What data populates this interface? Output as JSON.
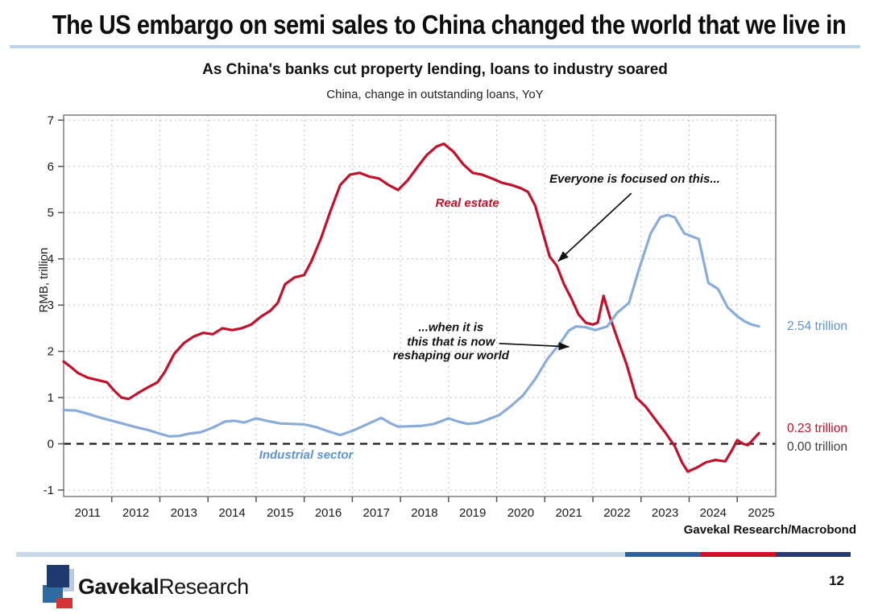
{
  "page": {
    "title": "The US embargo on semi sales to China changed the world that we live in",
    "source": "Gavekal Research/Macrobond",
    "page_number": "12",
    "logo": {
      "bold": "Gavekal",
      "regular": "Research"
    }
  },
  "colors": {
    "red_line": "#c3112b",
    "blue_line": "#8aacda",
    "blue_text": "#5f94ce",
    "rule": "#bfd4e6",
    "bar_light": "#c9d9ea",
    "bar_blue": "#2b5f9e",
    "bar_red": "#ce1126",
    "bar_navy": "#273b72",
    "logo_navy": "#1f3a6e",
    "logo_mid": "#2d6ca2",
    "logo_light": "#b9cbdf",
    "logo_red": "#d63434"
  },
  "chart_data": {
    "type": "line",
    "title": "As China's banks cut property lending, loans to industry soared",
    "subtitle": "China, change in outstanding loans, YoY",
    "ylabel": "RMB, trillion",
    "x_range": [
      2011.0,
      2025.8
    ],
    "y_range": [
      -1.14,
      7.11
    ],
    "x_ticks": [
      2011,
      2012,
      2013,
      2014,
      2015,
      2016,
      2017,
      2018,
      2019,
      2020,
      2021,
      2022,
      2023,
      2024,
      2025
    ],
    "x_grid": [
      2012,
      2013,
      2014,
      2015,
      2016,
      2017,
      2018,
      2019,
      2020,
      2021,
      2022,
      2023,
      2024,
      2025
    ],
    "y_ticks": [
      -1,
      0,
      1,
      2,
      3,
      4,
      5,
      6,
      7
    ],
    "zero_line": true,
    "grid": true,
    "legend_position": "in-plot labels",
    "series": [
      {
        "name": "Real estate",
        "color": "#c3112b",
        "points": [
          [
            2011.0,
            1.78
          ],
          [
            2011.15,
            1.66
          ],
          [
            2011.3,
            1.53
          ],
          [
            2011.5,
            1.43
          ],
          [
            2011.7,
            1.38
          ],
          [
            2011.9,
            1.33
          ],
          [
            2012.05,
            1.15
          ],
          [
            2012.2,
            1.0
          ],
          [
            2012.35,
            0.97
          ],
          [
            2012.55,
            1.1
          ],
          [
            2012.75,
            1.22
          ],
          [
            2012.95,
            1.33
          ],
          [
            2013.1,
            1.55
          ],
          [
            2013.3,
            1.95
          ],
          [
            2013.5,
            2.18
          ],
          [
            2013.7,
            2.32
          ],
          [
            2013.9,
            2.4
          ],
          [
            2014.1,
            2.37
          ],
          [
            2014.3,
            2.5
          ],
          [
            2014.5,
            2.46
          ],
          [
            2014.7,
            2.5
          ],
          [
            2014.9,
            2.58
          ],
          [
            2015.1,
            2.75
          ],
          [
            2015.3,
            2.88
          ],
          [
            2015.45,
            3.05
          ],
          [
            2015.6,
            3.45
          ],
          [
            2015.8,
            3.6
          ],
          [
            2016.0,
            3.65
          ],
          [
            2016.15,
            3.95
          ],
          [
            2016.35,
            4.45
          ],
          [
            2016.55,
            5.05
          ],
          [
            2016.75,
            5.6
          ],
          [
            2016.95,
            5.82
          ],
          [
            2017.15,
            5.86
          ],
          [
            2017.35,
            5.78
          ],
          [
            2017.55,
            5.74
          ],
          [
            2017.75,
            5.6
          ],
          [
            2017.95,
            5.49
          ],
          [
            2018.15,
            5.7
          ],
          [
            2018.35,
            5.98
          ],
          [
            2018.55,
            6.25
          ],
          [
            2018.75,
            6.43
          ],
          [
            2018.9,
            6.49
          ],
          [
            2019.1,
            6.32
          ],
          [
            2019.3,
            6.05
          ],
          [
            2019.5,
            5.86
          ],
          [
            2019.7,
            5.82
          ],
          [
            2019.9,
            5.74
          ],
          [
            2020.1,
            5.65
          ],
          [
            2020.3,
            5.6
          ],
          [
            2020.5,
            5.53
          ],
          [
            2020.65,
            5.45
          ],
          [
            2020.8,
            5.15
          ],
          [
            2020.95,
            4.6
          ],
          [
            2021.1,
            4.05
          ],
          [
            2021.25,
            3.85
          ],
          [
            2021.4,
            3.45
          ],
          [
            2021.55,
            3.15
          ],
          [
            2021.7,
            2.8
          ],
          [
            2021.85,
            2.62
          ],
          [
            2022.0,
            2.58
          ],
          [
            2022.1,
            2.62
          ],
          [
            2022.22,
            3.2
          ],
          [
            2022.35,
            2.75
          ],
          [
            2022.5,
            2.3
          ],
          [
            2022.7,
            1.72
          ],
          [
            2022.9,
            1.0
          ],
          [
            2023.1,
            0.8
          ],
          [
            2023.3,
            0.52
          ],
          [
            2023.5,
            0.25
          ],
          [
            2023.7,
            -0.05
          ],
          [
            2023.85,
            -0.4
          ],
          [
            2023.97,
            -0.6
          ],
          [
            2024.15,
            -0.52
          ],
          [
            2024.35,
            -0.4
          ],
          [
            2024.55,
            -0.35
          ],
          [
            2024.75,
            -0.38
          ],
          [
            2024.9,
            -0.12
          ],
          [
            2025.0,
            0.08
          ],
          [
            2025.12,
            0.0
          ],
          [
            2025.22,
            -0.03
          ],
          [
            2025.45,
            0.23
          ]
        ]
      },
      {
        "name": "Industrial sector",
        "color": "#8aacda",
        "points": [
          [
            2011.0,
            0.73
          ],
          [
            2011.25,
            0.72
          ],
          [
            2011.5,
            0.65
          ],
          [
            2011.75,
            0.57
          ],
          [
            2012.0,
            0.5
          ],
          [
            2012.25,
            0.43
          ],
          [
            2012.5,
            0.36
          ],
          [
            2012.75,
            0.3
          ],
          [
            2013.0,
            0.22
          ],
          [
            2013.2,
            0.16
          ],
          [
            2013.4,
            0.17
          ],
          [
            2013.6,
            0.22
          ],
          [
            2013.85,
            0.25
          ],
          [
            2014.1,
            0.35
          ],
          [
            2014.35,
            0.48
          ],
          [
            2014.55,
            0.5
          ],
          [
            2014.75,
            0.46
          ],
          [
            2015.0,
            0.55
          ],
          [
            2015.25,
            0.49
          ],
          [
            2015.5,
            0.44
          ],
          [
            2015.75,
            0.43
          ],
          [
            2016.0,
            0.42
          ],
          [
            2016.25,
            0.36
          ],
          [
            2016.5,
            0.27
          ],
          [
            2016.75,
            0.19
          ],
          [
            2017.0,
            0.28
          ],
          [
            2017.3,
            0.42
          ],
          [
            2017.6,
            0.56
          ],
          [
            2017.8,
            0.44
          ],
          [
            2017.95,
            0.37
          ],
          [
            2018.2,
            0.38
          ],
          [
            2018.45,
            0.39
          ],
          [
            2018.7,
            0.43
          ],
          [
            2019.0,
            0.55
          ],
          [
            2019.2,
            0.48
          ],
          [
            2019.4,
            0.43
          ],
          [
            2019.6,
            0.45
          ],
          [
            2019.8,
            0.52
          ],
          [
            2020.05,
            0.62
          ],
          [
            2020.3,
            0.82
          ],
          [
            2020.55,
            1.05
          ],
          [
            2020.8,
            1.4
          ],
          [
            2021.05,
            1.83
          ],
          [
            2021.3,
            2.15
          ],
          [
            2021.5,
            2.45
          ],
          [
            2021.65,
            2.54
          ],
          [
            2021.85,
            2.52
          ],
          [
            2022.05,
            2.46
          ],
          [
            2022.3,
            2.54
          ],
          [
            2022.5,
            2.83
          ],
          [
            2022.75,
            3.05
          ],
          [
            2022.95,
            3.75
          ],
          [
            2023.2,
            4.55
          ],
          [
            2023.4,
            4.9
          ],
          [
            2023.55,
            4.95
          ],
          [
            2023.7,
            4.9
          ],
          [
            2023.9,
            4.55
          ],
          [
            2024.2,
            4.43
          ],
          [
            2024.4,
            3.48
          ],
          [
            2024.6,
            3.35
          ],
          [
            2024.8,
            2.95
          ],
          [
            2025.0,
            2.76
          ],
          [
            2025.15,
            2.65
          ],
          [
            2025.3,
            2.58
          ],
          [
            2025.45,
            2.54
          ]
        ]
      }
    ],
    "annotations": [
      {
        "text": "Everyone is focused on this...",
        "x": 2022.87,
        "y": 5.72,
        "color": "#111111",
        "arrow": {
          "x1": 2022.8,
          "y1": 5.42,
          "x2": 2021.28,
          "y2": 3.95
        }
      },
      {
        "text": "...when it is\nthis that is now\nreshaping our world",
        "x": 2019.05,
        "y": 2.2,
        "color": "#111111",
        "arrow": {
          "x1": 2020.05,
          "y1": 2.17,
          "x2": 2021.5,
          "y2": 2.1
        }
      },
      {
        "text": "Real estate",
        "x": 2019.39,
        "y": 5.19,
        "color": "#c3112b",
        "arrow": null
      },
      {
        "text": "Industrial sector",
        "x": 2016.04,
        "y": -0.25,
        "color": "#5f94ce",
        "arrow": null
      }
    ],
    "end_labels": [
      {
        "text": "2.54 trillion",
        "color": "#5f94ce",
        "y": 2.54
      },
      {
        "text": "0.23 trillion",
        "color": "#c3112b",
        "y": 0.33
      },
      {
        "text": "0.00 trillion",
        "color": "#3d3d3d",
        "y": -0.08
      }
    ]
  }
}
